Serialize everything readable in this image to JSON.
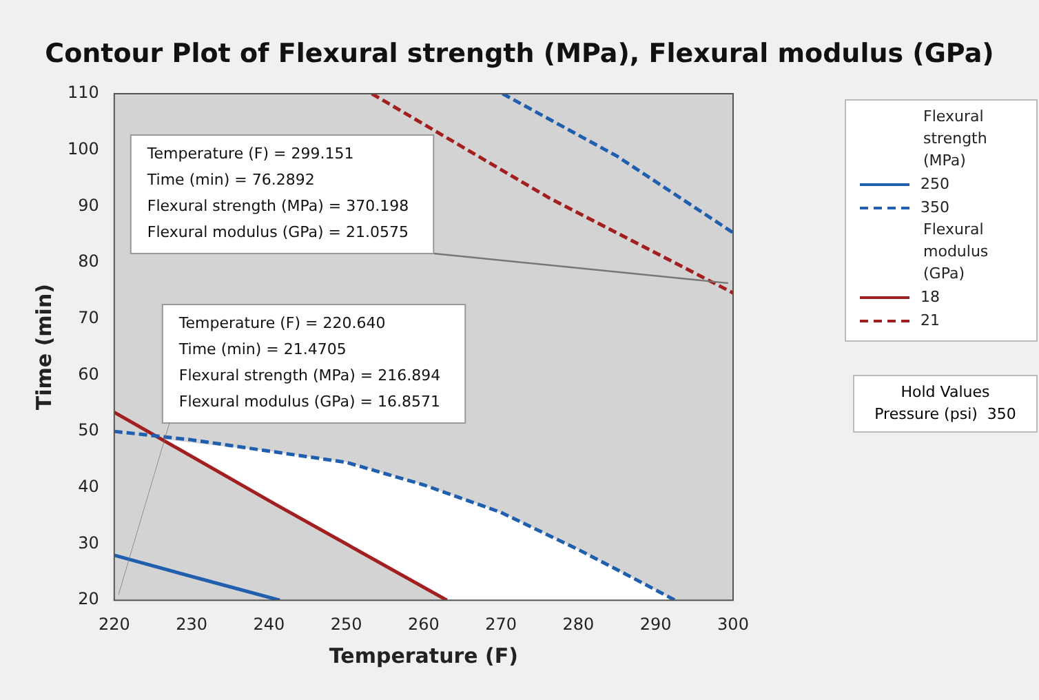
{
  "chart_data": {
    "type": "line",
    "title": "Contour Plot of Flexural strength (MPa), Flexural modulus (GPa)",
    "xlabel": "Temperature (F)",
    "ylabel": "Time (min)",
    "legend_title": "Flexural strength (MPa)",
    "legend": "right",
    "grid": false,
    "marker": "none",
    "xlim": [
      220,
      300
    ],
    "xticks": [
      220,
      230,
      240,
      250,
      260,
      270,
      280,
      290,
      300
    ],
    "ylim": [
      20,
      110
    ],
    "yticks": [
      20,
      30,
      40,
      50,
      60,
      70,
      80,
      90,
      100,
      110
    ],
    "series": [
      {
        "type": "area",
        "color": "#ffffff",
        "x": [
          226,
          230,
          240,
          250,
          260,
          270,
          280,
          287,
          292.5,
          263,
          240.9,
          226
        ],
        "values": [
          48.7,
          48,
          46.5,
          44.5,
          40.5,
          35.6,
          29,
          24,
          20,
          20,
          37,
          48.7
        ]
      },
      {
        "name": "250",
        "color": "#1f5fad",
        "line_style": "solid",
        "x": [
          220,
          230.6,
          241.4
        ],
        "values": [
          28,
          24,
          20
        ]
      },
      {
        "name": "350",
        "color": "#1f5fad",
        "line_style": "dashed",
        "x": [
          220,
          230,
          240,
          250,
          260,
          270,
          280,
          287,
          292.5
        ],
        "values": [
          50,
          48.5,
          46.5,
          44.5,
          40.5,
          35.6,
          29,
          24,
          20
        ]
      },
      {
        "color": "#1f5fad",
        "line_style": "dashed",
        "x": [
          270.2,
          285,
          300
        ],
        "values": [
          110,
          98.9,
          85.3
        ]
      },
      {
        "name": "18",
        "color": "#a31f1f",
        "line_style": "solid",
        "x": [
          220,
          240.9,
          263
        ],
        "values": [
          53.4,
          37,
          20
        ]
      },
      {
        "name": "21",
        "color": "#a31f1f",
        "line_style": "dashed",
        "x": [
          253.3,
          276.2,
          300
        ],
        "values": [
          110,
          91.5,
          74.6
        ]
      }
    ],
    "annotations": [
      "Temperature (F) = 299.151\nTime (min) = 76.2892\nFlexural strength (MPa) = 370.198\nFlexural modulus (GPa) = 21.0575",
      "Temperature (F) = 220.640\nTime (min) = 21.4705\nFlexural strength (MPa) = 216.894\nFlexural modulus (GPa) = 16.8571",
      "Flexural modulus (GPa)",
      "Hold Values\nPressure (psi)  350"
    ]
  }
}
